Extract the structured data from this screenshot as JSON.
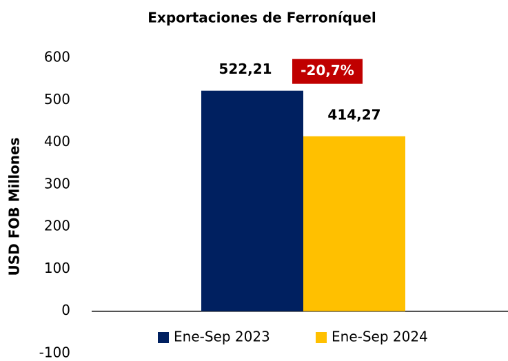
{
  "chart_data": {
    "type": "bar",
    "title": "Exportaciones de Ferroníquel",
    "ylabel": "USD FOB Millones",
    "categories": [
      null
    ],
    "series": [
      {
        "name": "Ene-Sep 2023",
        "color": "#002060",
        "values": [
          522.21
        ],
        "value_labels": [
          "522,21"
        ]
      },
      {
        "name": "Ene-Sep 2024",
        "color": "#ffc000",
        "values": [
          414.27
        ],
        "value_labels": [
          "414,27"
        ]
      }
    ],
    "annotation": "-20,7%",
    "annotation_color": "#c00000",
    "ylim": [
      -100,
      600
    ],
    "yticks": [
      -100,
      0,
      100,
      200,
      300,
      400,
      500,
      600
    ],
    "grid": false,
    "legend": "bottom"
  }
}
